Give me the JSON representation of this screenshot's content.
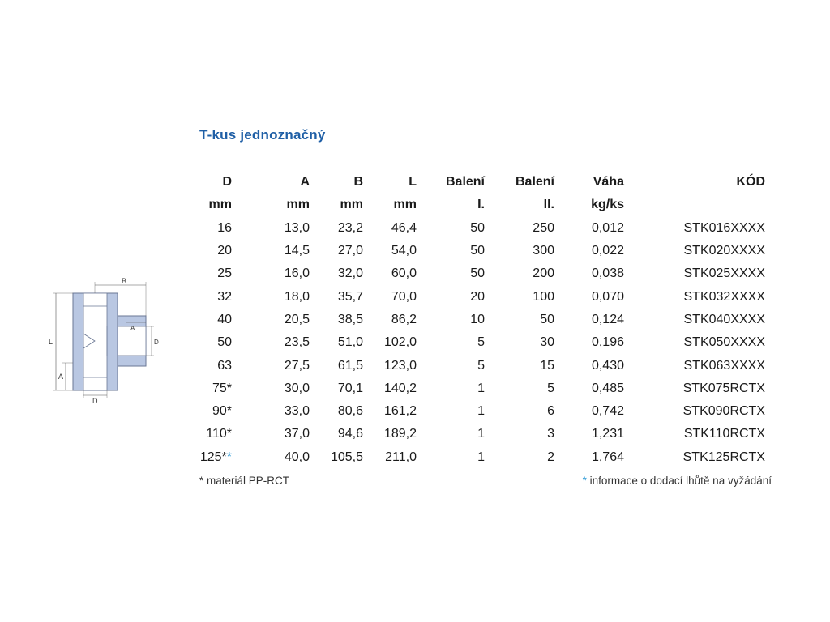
{
  "title": "T-kus jednoznačný",
  "diagram": {
    "labels": {
      "L": "L",
      "A_left": "A",
      "B": "B",
      "A_branch": "A",
      "D_branch": "D",
      "D_bottom": "D"
    }
  },
  "table": {
    "headers_row1": [
      "D",
      "A",
      "B",
      "L",
      "Balení",
      "Balení",
      "Váha",
      "KÓD"
    ],
    "headers_row2": [
      "mm",
      "mm",
      "mm",
      "mm",
      "I.",
      "II.",
      "kg/ks",
      ""
    ],
    "rows": [
      {
        "d": "16",
        "d_mark": "",
        "d_blue_mark": "",
        "a": "13,0",
        "b": "23,2",
        "l": "46,4",
        "pack1": "50",
        "pack2": "250",
        "weight": "0,012",
        "code": "STK016XXXX"
      },
      {
        "d": "20",
        "d_mark": "",
        "d_blue_mark": "",
        "a": "14,5",
        "b": "27,0",
        "l": "54,0",
        "pack1": "50",
        "pack2": "300",
        "weight": "0,022",
        "code": "STK020XXXX"
      },
      {
        "d": "25",
        "d_mark": "",
        "d_blue_mark": "",
        "a": "16,0",
        "b": "32,0",
        "l": "60,0",
        "pack1": "50",
        "pack2": "200",
        "weight": "0,038",
        "code": "STK025XXXX"
      },
      {
        "d": "32",
        "d_mark": "",
        "d_blue_mark": "",
        "a": "18,0",
        "b": "35,7",
        "l": "70,0",
        "pack1": "20",
        "pack2": "100",
        "weight": "0,070",
        "code": "STK032XXXX"
      },
      {
        "d": "40",
        "d_mark": "",
        "d_blue_mark": "",
        "a": "20,5",
        "b": "38,5",
        "l": "86,2",
        "pack1": "10",
        "pack2": "50",
        "weight": "0,124",
        "code": "STK040XXXX"
      },
      {
        "d": "50",
        "d_mark": "",
        "d_blue_mark": "",
        "a": "23,5",
        "b": "51,0",
        "l": "102,0",
        "pack1": "5",
        "pack2": "30",
        "weight": "0,196",
        "code": "STK050XXXX"
      },
      {
        "d": "63",
        "d_mark": "",
        "d_blue_mark": "",
        "a": "27,5",
        "b": "61,5",
        "l": "123,0",
        "pack1": "5",
        "pack2": "15",
        "weight": "0,430",
        "code": "STK063XXXX"
      },
      {
        "d": "75",
        "d_mark": "*",
        "d_blue_mark": "",
        "a": "30,0",
        "b": "70,1",
        "l": "140,2",
        "pack1": "1",
        "pack2": "5",
        "weight": "0,485",
        "code": "STK075RCTX"
      },
      {
        "d": "90",
        "d_mark": "*",
        "d_blue_mark": "",
        "a": "33,0",
        "b": "80,6",
        "l": "161,2",
        "pack1": "1",
        "pack2": "6",
        "weight": "0,742",
        "code": "STK090RCTX"
      },
      {
        "d": "110",
        "d_mark": "*",
        "d_blue_mark": "",
        "a": "37,0",
        "b": "94,6",
        "l": "189,2",
        "pack1": "1",
        "pack2": "3",
        "weight": "1,231",
        "code": "STK110RCTX"
      },
      {
        "d": "125",
        "d_mark": "*",
        "d_blue_mark": "*",
        "a": "40,0",
        "b": "105,5",
        "l": "211,0",
        "pack1": "1",
        "pack2": "2",
        "weight": "1,764",
        "code": "STK125RCTX"
      }
    ]
  },
  "footnotes": {
    "left": "* materiál PP-RCT",
    "right_mark": "*",
    "right_text": " informace o dodací lhůtě na vyžádání"
  },
  "colors": {
    "title": "#1f5fa6",
    "blue_mark": "#3aa0d8",
    "pipe_fill": "#b9c7e2"
  }
}
